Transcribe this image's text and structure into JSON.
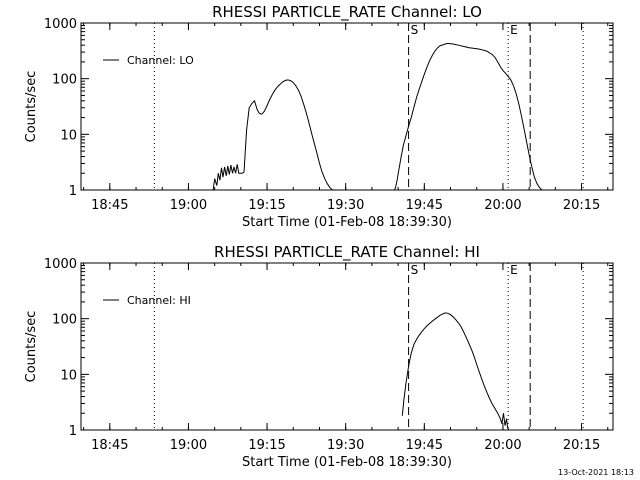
{
  "footer": {
    "timestamp": "13-Oct-2021 18:13"
  },
  "chart_data": [
    {
      "type": "line",
      "title": "RHESSI PARTICLE_RATE Channel: LO",
      "xlabel": "Start Time (01-Feb-08 18:39:30)",
      "ylabel": "Counts/sec",
      "x_unit": "minutes after 18:39:30",
      "xlim": [
        0,
        101.5
      ],
      "ylim": [
        1,
        1000
      ],
      "yscale": "log",
      "xticks": [
        {
          "t": 5.5,
          "label": "18:45"
        },
        {
          "t": 20.5,
          "label": "19:00"
        },
        {
          "t": 35.5,
          "label": "19:15"
        },
        {
          "t": 50.5,
          "label": "19:30"
        },
        {
          "t": 65.5,
          "label": "19:45"
        },
        {
          "t": 80.5,
          "label": "20:00"
        },
        {
          "t": 95.5,
          "label": "20:15"
        }
      ],
      "yticks": [
        {
          "v": 1,
          "label": "1"
        },
        {
          "v": 10,
          "label": "10"
        },
        {
          "v": 100,
          "label": "100"
        },
        {
          "v": 1000,
          "label": "1000"
        }
      ],
      "legend": {
        "label": "Channel: LO",
        "position": "top-left"
      },
      "vlines": [
        {
          "t": 14.0,
          "style": "dotted",
          "label": ""
        },
        {
          "t": 62.5,
          "style": "dashed",
          "label": "S"
        },
        {
          "t": 81.5,
          "style": "dotted",
          "label": "E"
        },
        {
          "t": 85.7,
          "style": "dashed",
          "label": ""
        },
        {
          "t": 95.8,
          "style": "dotted",
          "label": ""
        }
      ],
      "series": [
        {
          "name": "Channel: LO",
          "segments": [
            {
              "x": [
                25.1,
                25.2,
                25.5,
                25.9,
                26.2,
                26.5,
                26.8,
                27.1,
                27.4,
                27.7,
                28.0,
                28.3,
                28.6,
                28.9,
                29.2,
                29.5,
                29.8,
                30.1,
                30.4,
                30.8,
                31.1,
                31.6,
                32.1,
                32.6,
                33.1,
                33.6,
                34.0,
                34.5,
                35.0,
                35.5,
                36.0,
                36.5,
                37.0,
                37.5,
                38.0,
                38.5,
                39.0,
                39.5,
                40.0,
                40.5,
                41.0,
                41.5,
                42.0,
                42.5,
                43.0,
                43.5,
                44.0,
                44.5,
                45.0,
                45.5,
                46.0,
                46.5,
                47.0,
                47.5,
                48.0,
                48.5,
                48.9
              ],
              "y": [
                1.0,
                1.0,
                1.6,
                1.2,
                2.0,
                1.5,
                2.5,
                1.7,
                2.6,
                1.8,
                2.7,
                1.9,
                2.8,
                2.0,
                2.6,
                2.0,
                2.9,
                2.0,
                2.0,
                2.0,
                2.1,
                12,
                30,
                36,
                40,
                28,
                24,
                23,
                26,
                33,
                42,
                52,
                62,
                72,
                80,
                88,
                93,
                95,
                92,
                85,
                74,
                62,
                48,
                34,
                24,
                16,
                10.5,
                7,
                4.6,
                3.0,
                2.1,
                1.6,
                1.3,
                1.1,
                1.0,
                1.0,
                1.0
              ]
            },
            {
              "x": [
                59.8,
                60.0,
                60.3,
                60.7,
                61.1,
                61.5,
                62.0,
                62.5,
                63.0,
                63.5,
                64.0,
                64.5,
                65.0,
                65.5,
                66.0,
                66.5,
                67.0,
                67.5,
                68.0,
                68.5,
                69.0,
                69.5,
                70.0,
                70.5,
                71.0,
                71.5,
                72.0,
                72.5,
                73.0,
                73.5,
                74.0,
                74.5,
                75.0,
                75.5,
                76.0,
                76.5,
                77.0,
                77.5,
                78.0,
                78.5,
                79.0,
                79.5,
                80.0,
                80.5,
                81.0,
                81.5,
                82.0,
                82.5,
                83.0,
                83.5,
                84.0,
                84.5,
                85.0,
                85.5,
                86.0,
                86.5,
                87.0,
                87.5,
                88.0
              ],
              "y": [
                1.0,
                1.1,
                1.5,
                2.5,
                4.0,
                6.3,
                9.5,
                14,
                20,
                30,
                45,
                64,
                88,
                120,
                160,
                210,
                260,
                310,
                355,
                390,
                405,
                420,
                430,
                425,
                420,
                410,
                400,
                390,
                380,
                370,
                360,
                355,
                350,
                345,
                340,
                330,
                320,
                310,
                290,
                270,
                240,
                200,
                165,
                140,
                125,
                110,
                95,
                75,
                55,
                36,
                22,
                13,
                7.5,
                4.3,
                2.6,
                1.7,
                1.3,
                1.1,
                1.0
              ]
            }
          ]
        }
      ]
    },
    {
      "type": "line",
      "title": "RHESSI PARTICLE_RATE Channel: HI",
      "xlabel": "Start Time (01-Feb-08 18:39:30)",
      "ylabel": "Counts/sec",
      "x_unit": "minutes after 18:39:30",
      "xlim": [
        0,
        101.5
      ],
      "ylim": [
        1,
        1000
      ],
      "yscale": "log",
      "xticks": [
        {
          "t": 5.5,
          "label": "18:45"
        },
        {
          "t": 20.5,
          "label": "19:00"
        },
        {
          "t": 35.5,
          "label": "19:15"
        },
        {
          "t": 50.5,
          "label": "19:30"
        },
        {
          "t": 65.5,
          "label": "19:45"
        },
        {
          "t": 80.5,
          "label": "20:00"
        },
        {
          "t": 95.5,
          "label": "20:15"
        }
      ],
      "yticks": [
        {
          "v": 1,
          "label": "1"
        },
        {
          "v": 10,
          "label": "10"
        },
        {
          "v": 100,
          "label": "100"
        },
        {
          "v": 1000,
          "label": "1000"
        }
      ],
      "legend": {
        "label": "Channel: HI",
        "position": "top-left"
      },
      "vlines": [
        {
          "t": 14.0,
          "style": "dotted",
          "label": ""
        },
        {
          "t": 62.5,
          "style": "dashed",
          "label": "S"
        },
        {
          "t": 81.5,
          "style": "dotted",
          "label": "E"
        },
        {
          "t": 85.7,
          "style": "dashed",
          "label": ""
        },
        {
          "t": 95.8,
          "style": "dotted",
          "label": ""
        }
      ],
      "series": [
        {
          "name": "Channel: HI",
          "segments": [
            {
              "x": [
                61.3,
                61.6,
                62.0,
                62.5,
                63.0,
                63.5,
                64.0,
                64.5,
                65.0,
                65.5,
                66.0,
                66.5,
                67.0,
                67.5,
                68.0,
                68.5,
                69.0,
                69.5,
                70.0,
                70.5,
                71.0,
                71.5,
                72.0,
                72.5,
                73.0,
                73.5,
                74.0,
                74.5,
                75.0,
                75.5,
                76.0,
                76.5,
                77.0,
                77.5,
                78.0,
                78.5,
                79.0,
                79.5,
                80.0,
                80.3,
                80.6,
                80.9,
                81.2,
                81.4,
                81.6
              ],
              "y": [
                1.8,
                3.5,
                7.0,
                14,
                24,
                34,
                42,
                50,
                58,
                66,
                74,
                82,
                90,
                98,
                106,
                115,
                122,
                127,
                125,
                118,
                108,
                96,
                84,
                72,
                58,
                46,
                36,
                28,
                21,
                15,
                11,
                8.0,
                6.0,
                4.6,
                3.6,
                2.9,
                2.4,
                2.0,
                1.6,
                1.3,
                2.0,
                1.2,
                1.6,
                1.1,
                1.0
              ]
            }
          ]
        }
      ]
    }
  ]
}
